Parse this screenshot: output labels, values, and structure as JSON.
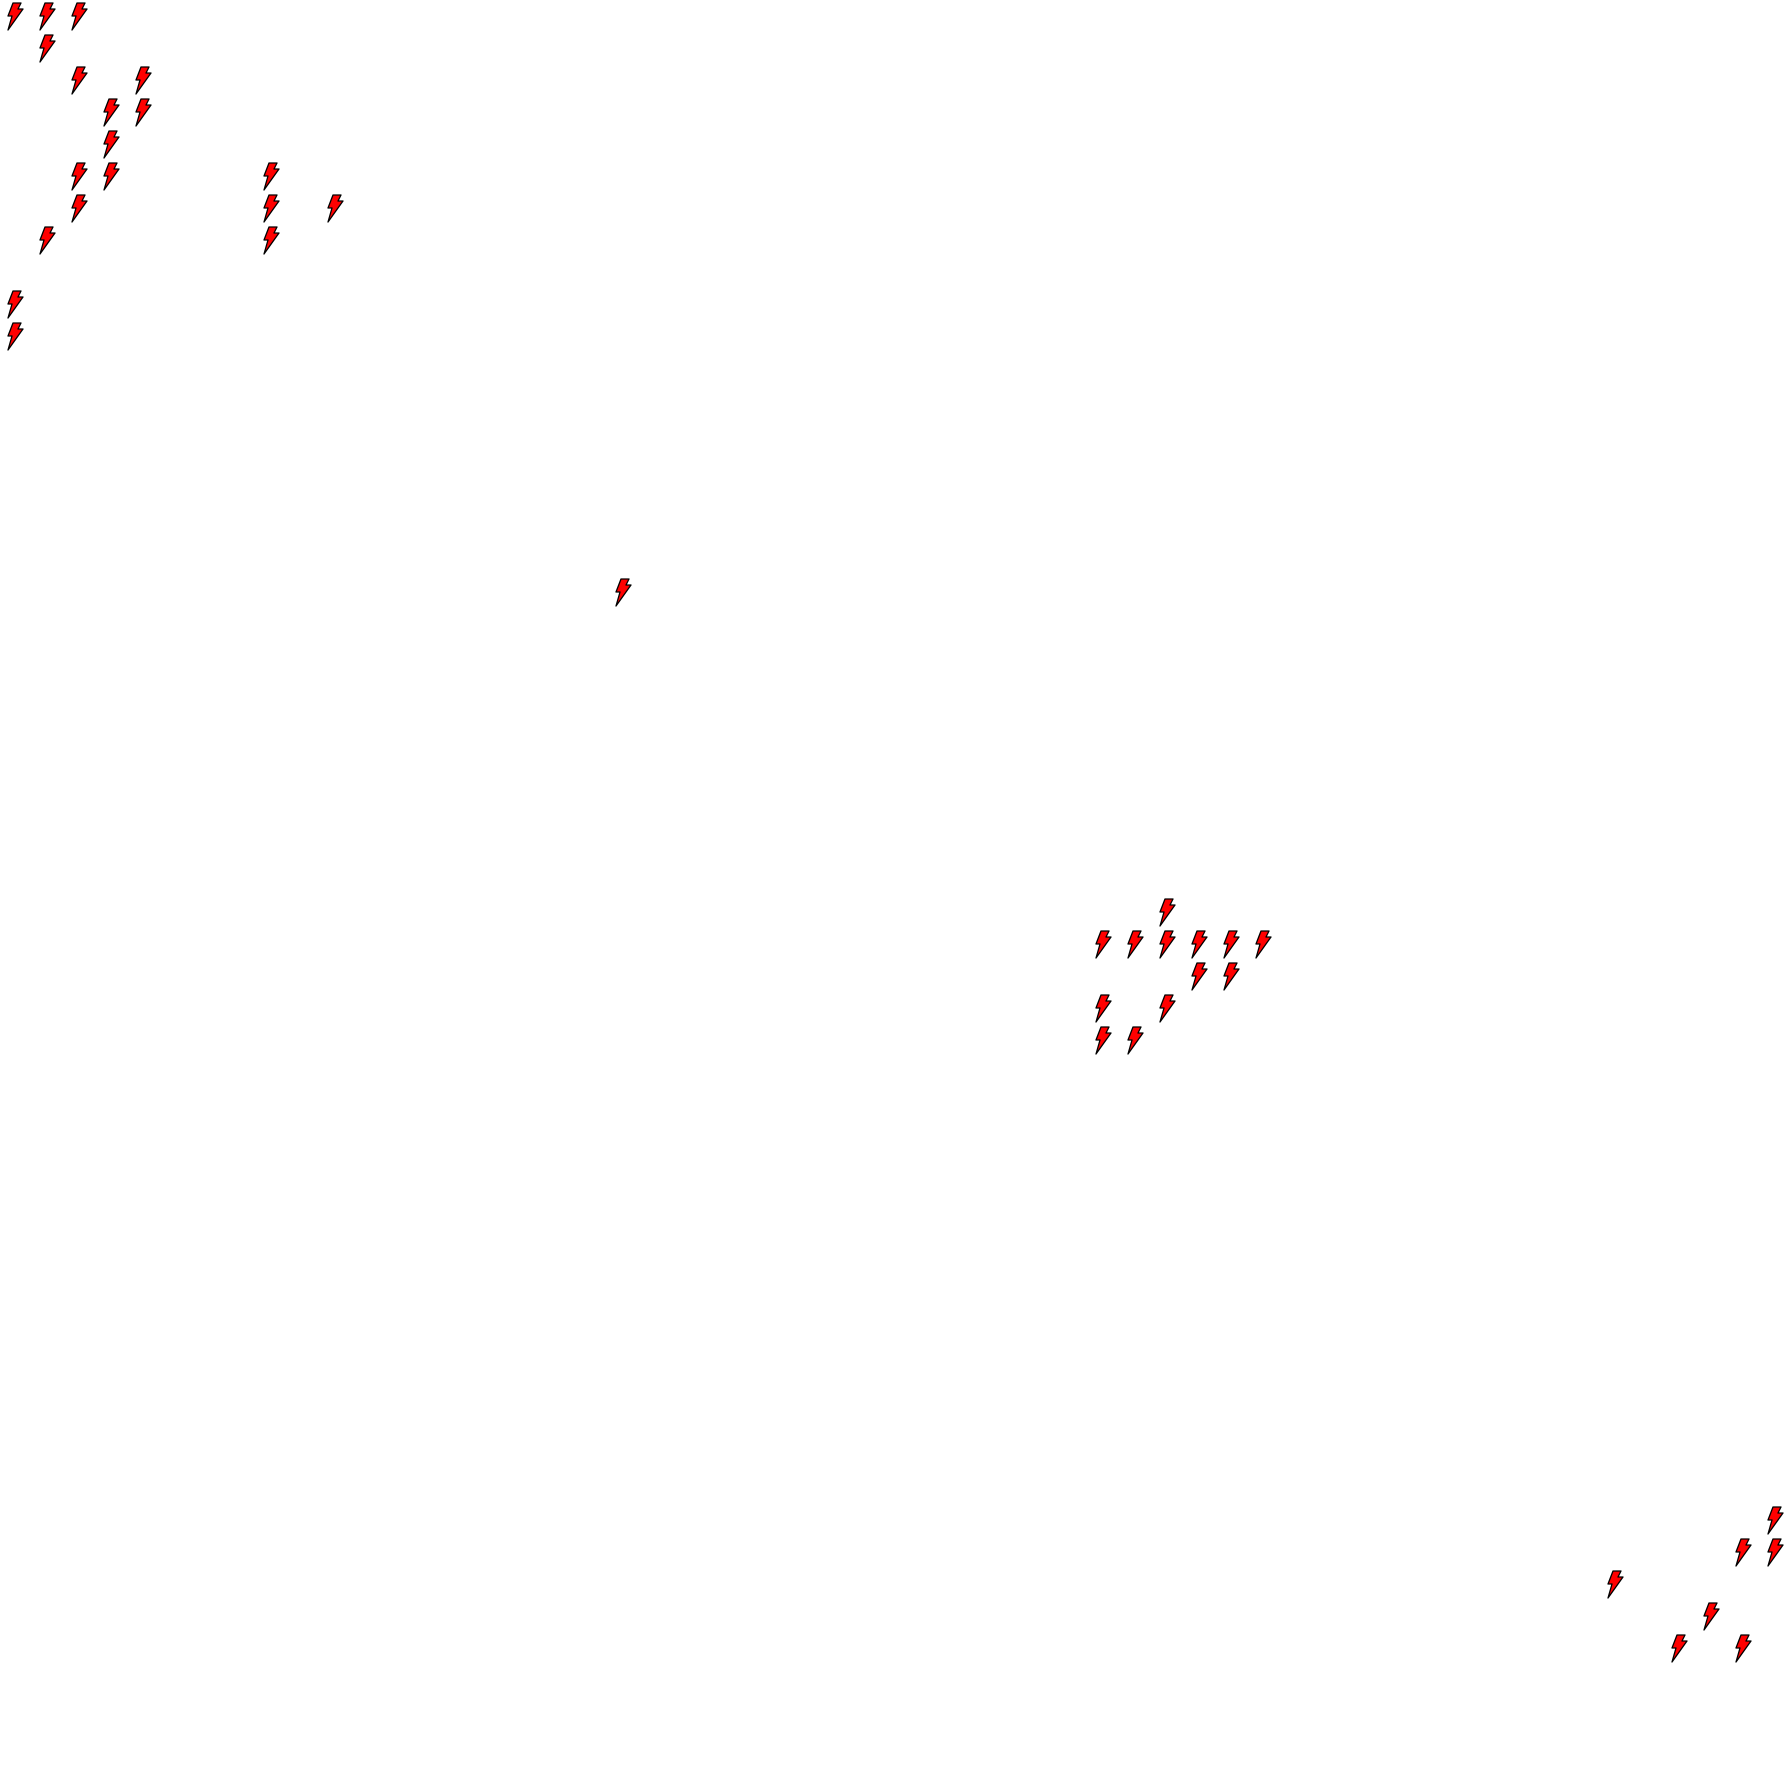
{
  "board": {
    "columns": 56,
    "rows": 56,
    "background": "#ffffff",
    "icon": "lightning-bolt-icon",
    "icon_fill": "#ff0000",
    "icon_outline": "#000000",
    "cells": [
      [
        0,
        0
      ],
      [
        0,
        1
      ],
      [
        0,
        2
      ],
      [
        1,
        1
      ],
      [
        2,
        2
      ],
      [
        2,
        4
      ],
      [
        3,
        3
      ],
      [
        3,
        4
      ],
      [
        4,
        3
      ],
      [
        5,
        2
      ],
      [
        5,
        3
      ],
      [
        5,
        8
      ],
      [
        6,
        2
      ],
      [
        6,
        8
      ],
      [
        6,
        10
      ],
      [
        7,
        1
      ],
      [
        7,
        8
      ],
      [
        9,
        0
      ],
      [
        10,
        0
      ],
      [
        18,
        19
      ],
      [
        28,
        36
      ],
      [
        29,
        34
      ],
      [
        29,
        35
      ],
      [
        29,
        36
      ],
      [
        29,
        37
      ],
      [
        29,
        38
      ],
      [
        29,
        39
      ],
      [
        30,
        37
      ],
      [
        30,
        38
      ],
      [
        31,
        34
      ],
      [
        31,
        36
      ],
      [
        32,
        34
      ],
      [
        32,
        35
      ],
      [
        47,
        55
      ],
      [
        48,
        54
      ],
      [
        48,
        55
      ],
      [
        49,
        50
      ],
      [
        50,
        53
      ],
      [
        51,
        52
      ],
      [
        51,
        54
      ]
    ]
  }
}
